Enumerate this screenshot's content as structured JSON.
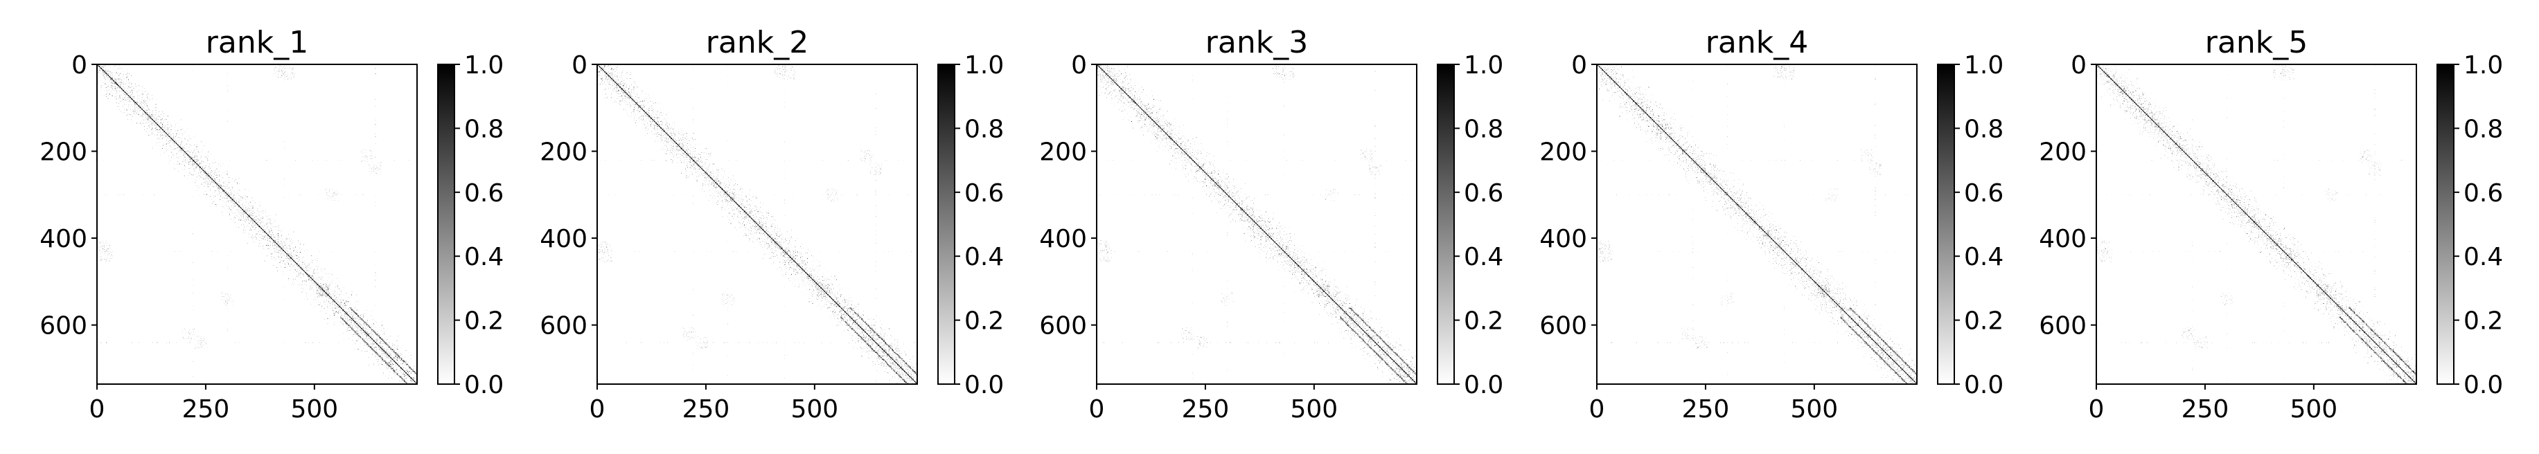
{
  "chart_data": {
    "type": "heatmap",
    "colormap": "gray_r",
    "panels": [
      {
        "title": "rank_1",
        "yticks": [
          0,
          200,
          400,
          600
        ],
        "xticks": [
          0,
          250,
          500
        ],
        "cbar_ticks": [
          "0.0",
          "0.2",
          "0.4",
          "0.6",
          "0.8",
          "1.0"
        ],
        "ylim": [
          736,
          0
        ],
        "xlim": [
          0,
          736
        ]
      },
      {
        "title": "rank_2",
        "yticks": [
          0,
          200,
          400,
          600
        ],
        "xticks": [
          0,
          250,
          500
        ],
        "cbar_ticks": [
          "0.0",
          "0.2",
          "0.4",
          "0.6",
          "0.8",
          "1.0"
        ],
        "ylim": [
          736,
          0
        ],
        "xlim": [
          0,
          736
        ]
      },
      {
        "title": "rank_3",
        "yticks": [
          0,
          200,
          400,
          600
        ],
        "xticks": [
          0,
          250,
          500
        ],
        "cbar_ticks": [
          "0.0",
          "0.2",
          "0.4",
          "0.6",
          "0.8",
          "1.0"
        ],
        "ylim": [
          736,
          0
        ],
        "xlim": [
          0,
          736
        ]
      },
      {
        "title": "rank_4",
        "yticks": [
          0,
          200,
          400,
          600
        ],
        "xticks": [
          0,
          250,
          500
        ],
        "cbar_ticks": [
          "0.0",
          "0.2",
          "0.4",
          "0.6",
          "0.8",
          "1.0"
        ],
        "ylim": [
          736,
          0
        ],
        "xlim": [
          0,
          736
        ]
      },
      {
        "title": "rank_5",
        "yticks": [
          0,
          200,
          400,
          600
        ],
        "xticks": [
          0,
          250,
          500
        ],
        "cbar_ticks": [
          "0.0",
          "0.2",
          "0.4",
          "0.6",
          "0.8",
          "1.0"
        ],
        "ylim": [
          736,
          0
        ],
        "xlim": [
          0,
          736
        ]
      }
    ],
    "matrix_size": 736,
    "value_range": [
      0.0,
      1.0
    ],
    "description_pattern": {
      "diagonal": 1.0,
      "near_diagonal_band_halfwidth": 70,
      "off_diagonal_clusters": [
        {
          "row": 420,
          "col": 15,
          "value": 0.6
        },
        {
          "row": 620,
          "col": 210,
          "value": 0.5
        },
        {
          "row": 540,
          "col": 300,
          "value": 0.4
        },
        {
          "row": 240,
          "col": 640,
          "value": 0.5
        },
        {
          "row": 520,
          "col": 520,
          "value": 0.7
        },
        {
          "row": 20,
          "col": 440,
          "value": 0.5
        }
      ]
    }
  }
}
